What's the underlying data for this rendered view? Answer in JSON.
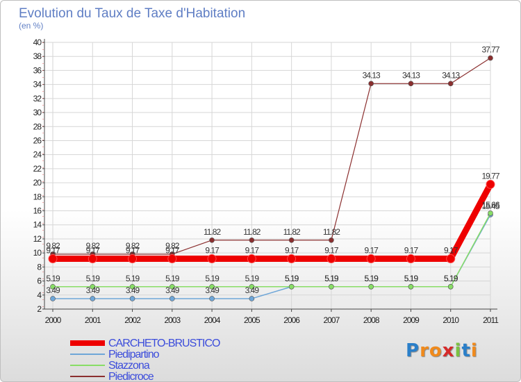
{
  "chart_data": {
    "type": "line",
    "title": "Evolution du Taux de Taxe d'Habitation",
    "ylabel": "(en %)",
    "xlabel": "",
    "ylim": [
      2,
      40
    ],
    "ytick_step": 2,
    "yticks": [
      "2",
      "4",
      "6",
      "8",
      "10",
      "12",
      "14",
      "16",
      "18",
      "20",
      "22",
      "24",
      "26",
      "28",
      "30",
      "32",
      "34",
      "36",
      "38",
      "40"
    ],
    "categories": [
      "2000",
      "2001",
      "2002",
      "2003",
      "2004",
      "2005",
      "2006",
      "2007",
      "2008",
      "2009",
      "2010",
      "2011"
    ],
    "series": [
      {
        "name": "CARCHETO-BRUSTICO",
        "color": "#ee0000",
        "values": [
          9.17,
          9.17,
          9.17,
          9.17,
          9.17,
          9.17,
          9.17,
          9.17,
          9.17,
          9.17,
          9.17,
          19.77
        ],
        "labels": [
          "9.17",
          "9.17",
          "9.17",
          "9.17",
          "9.17",
          "9.17",
          "9.17",
          "9.17",
          "9.17",
          "9.17",
          "9.17",
          "19.77"
        ]
      },
      {
        "name": "Piedipartino",
        "color": "#6ea6d8",
        "values": [
          3.49,
          3.49,
          3.49,
          3.49,
          3.49,
          3.49,
          5.19,
          5.19,
          5.19,
          5.19,
          5.19,
          15.45
        ],
        "labels": [
          "3.49",
          "3.49",
          "3.49",
          "3.49",
          "3.49",
          "3.49",
          "5.19",
          "5.19",
          "5.19",
          "5.19",
          "5.19",
          "15.45"
        ]
      },
      {
        "name": "Stazzona",
        "color": "#88dd66",
        "values": [
          5.19,
          5.19,
          5.19,
          5.19,
          5.19,
          5.19,
          5.19,
          5.19,
          5.19,
          5.19,
          5.19,
          15.66
        ],
        "labels": [
          "5.19",
          "5.19",
          "5.19",
          "5.19",
          "5.19",
          "5.19",
          "5.19",
          "5.19",
          "5.19",
          "5.19",
          "5.19",
          "15.66"
        ]
      },
      {
        "name": "Piedicroce",
        "color": "#8b2f2f",
        "values": [
          9.82,
          9.82,
          9.82,
          9.82,
          11.82,
          11.82,
          11.82,
          11.82,
          34.13,
          34.13,
          34.13,
          37.77
        ],
        "labels": [
          "9.82",
          "9.82",
          "9.82",
          "9.82",
          "11.82",
          "11.82",
          "11.82",
          "11.82",
          "34.13",
          "34.13",
          "34.13",
          "37.77"
        ]
      }
    ],
    "legend": "bottom-left",
    "grid": true
  },
  "logo": {
    "text": "Proxiti",
    "letters": [
      "P",
      "r",
      "o",
      "x",
      "i",
      "t",
      "i"
    ],
    "colors": [
      "#2a7fc9",
      "#f08a1c",
      "#f08a1c",
      "#d62a2a",
      "#7cc242",
      "#2a7fc9",
      "#f08a1c"
    ]
  }
}
